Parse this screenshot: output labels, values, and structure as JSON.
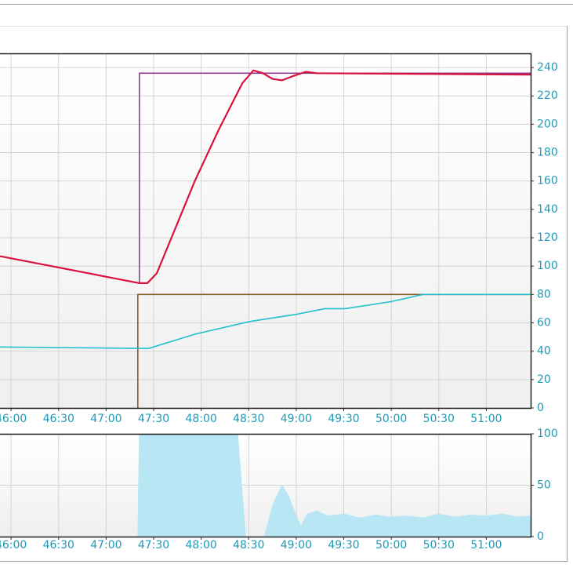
{
  "chart_data": [
    {
      "type": "line",
      "xlim": [
        2753,
        3088
      ],
      "ylim": [
        0,
        250
      ],
      "xticks": [
        {
          "value": 2760,
          "label": "46:00"
        },
        {
          "value": 2790,
          "label": "46:30"
        },
        {
          "value": 2820,
          "label": "47:00"
        },
        {
          "value": 2850,
          "label": "47:30"
        },
        {
          "value": 2880,
          "label": "48:00"
        },
        {
          "value": 2910,
          "label": "48:30"
        },
        {
          "value": 2940,
          "label": "49:00"
        },
        {
          "value": 2970,
          "label": "49:30"
        },
        {
          "value": 3000,
          "label": "50:00"
        },
        {
          "value": 3030,
          "label": "50:30"
        },
        {
          "value": 3060,
          "label": "51:00"
        }
      ],
      "yticks": [
        0,
        20,
        40,
        60,
        80,
        100,
        120,
        140,
        160,
        180,
        200,
        220,
        240
      ],
      "grid": true,
      "series": [
        {
          "color": "#8b5a2b",
          "x": [
            2840,
            2840,
            3088
          ],
          "values": [
            0,
            80,
            80
          ]
        },
        {
          "color": "#8e3d8e",
          "x": [
            2841,
            2841,
            3088
          ],
          "values": [
            88,
            236,
            236
          ]
        },
        {
          "color": "#22c0cc",
          "x": [
            2753,
            2841,
            2847,
            2876,
            2911,
            2940,
            2958,
            2971,
            3000,
            3020,
            3088
          ],
          "values": [
            43,
            42,
            42,
            52,
            61,
            66,
            70,
            70,
            75,
            80,
            80
          ]
        },
        {
          "color": "#d8123f",
          "x": [
            2753,
            2841,
            2846,
            2852,
            2876,
            2891,
            2906,
            2913,
            2919,
            2925,
            2931,
            2938,
            2946,
            2953,
            3088
          ],
          "values": [
            107,
            88,
            88,
            95,
            160,
            196,
            229,
            238,
            236,
            232,
            231,
            234,
            237,
            236,
            235
          ]
        }
      ]
    },
    {
      "type": "area",
      "xlim": [
        2753,
        3088
      ],
      "ylim": [
        0,
        100
      ],
      "xticks": [
        {
          "value": 2760,
          "label": "46:00"
        },
        {
          "value": 2790,
          "label": "46:30"
        },
        {
          "value": 2820,
          "label": "47:00"
        },
        {
          "value": 2850,
          "label": "47:30"
        },
        {
          "value": 2880,
          "label": "48:00"
        },
        {
          "value": 2910,
          "label": "48:30"
        },
        {
          "value": 2940,
          "label": "49:00"
        },
        {
          "value": 2970,
          "label": "49:30"
        },
        {
          "value": 3000,
          "label": "50:00"
        },
        {
          "value": 3030,
          "label": "50:30"
        },
        {
          "value": 3060,
          "label": "51:00"
        }
      ],
      "yticks": [
        0,
        50,
        100
      ],
      "grid": true,
      "series": [
        {
          "color": "#b8e6f4",
          "x": [
            2753,
            2840,
            2841,
            2903,
            2908,
            2920,
            2925,
            2931,
            2935,
            2940,
            2943,
            2947,
            2953,
            2960,
            2970,
            2980,
            2990,
            3000,
            3010,
            3020,
            3030,
            3040,
            3050,
            3060,
            3070,
            3080,
            3088
          ],
          "values": [
            0,
            0,
            100,
            100,
            0,
            0,
            30,
            50,
            40,
            20,
            10,
            22,
            25,
            20,
            22,
            18,
            21,
            19,
            20,
            18,
            22,
            19,
            21,
            20,
            22,
            19,
            20
          ]
        }
      ]
    }
  ]
}
